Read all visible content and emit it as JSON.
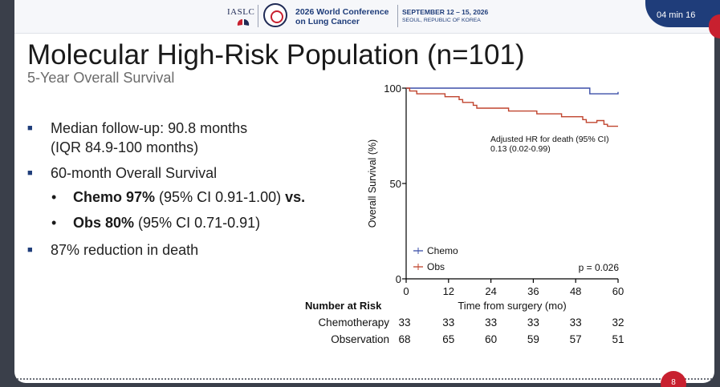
{
  "header": {
    "org": "IASLC",
    "conference_line1": "2026 World Conference",
    "conference_line2": "on Lung Cancer",
    "dates": "SEPTEMBER 12 – 15, 2026",
    "location": "SEOUL, REPUBLIC OF KOREA"
  },
  "timer": {
    "label": "04 min 16"
  },
  "slide": {
    "title": "Molecular High-Risk Population (n=101)",
    "subtitle": "5-Year Overall Survival",
    "page_number": "8",
    "bullets": [
      {
        "line1": "Median follow-up: 90.8 months",
        "line2": "(IQR 84.9-100 months)"
      },
      {
        "line1": "60-month Overall Survival"
      },
      {
        "line1": "87% reduction in death"
      }
    ],
    "sub_bullets": [
      {
        "bold": "Chemo 97%",
        "rest": " (95% CI 0.91-1.00) ",
        "tail": "vs."
      },
      {
        "bold": "Obs 80%",
        "rest": " (95% CI 0.71-0.91)",
        "tail": ""
      }
    ]
  },
  "chart_data": {
    "type": "line",
    "ylabel": "Overall Survival (%)",
    "xlabel": "Time from surgery (mo)",
    "xlim": [
      0,
      60
    ],
    "ylim": [
      0,
      100
    ],
    "x_ticks": [
      "0",
      "12",
      "24",
      "36",
      "48",
      "60"
    ],
    "y_ticks": [
      "0",
      "50",
      "100"
    ],
    "annotation_line1": "Adjusted HR for death (95% CI)",
    "annotation_line2": "0.13 (0.02-0.99)",
    "p_value": "p = 0.026",
    "legend_placement": "bottom-left",
    "series": [
      {
        "name": "Chemo",
        "color": "#3b4fa8",
        "steps": [
          [
            0,
            100
          ],
          [
            52,
            100
          ],
          [
            52,
            97
          ],
          [
            60,
            97
          ],
          [
            60,
            98
          ]
        ]
      },
      {
        "name": "Obs",
        "color": "#c0442e",
        "steps": [
          [
            0,
            100
          ],
          [
            1,
            100
          ],
          [
            1,
            98.5
          ],
          [
            3,
            98.5
          ],
          [
            3,
            97
          ],
          [
            11,
            97
          ],
          [
            11,
            95.5
          ],
          [
            15,
            95.5
          ],
          [
            15,
            94
          ],
          [
            16,
            94
          ],
          [
            16,
            92.5
          ],
          [
            19,
            92.5
          ],
          [
            19,
            91
          ],
          [
            20,
            91
          ],
          [
            20,
            89.5
          ],
          [
            29,
            89.5
          ],
          [
            29,
            88
          ],
          [
            37,
            88
          ],
          [
            37,
            86.5
          ],
          [
            44,
            86.5
          ],
          [
            44,
            85
          ],
          [
            50,
            85
          ],
          [
            50,
            83.5
          ],
          [
            51,
            83.5
          ],
          [
            51,
            82
          ],
          [
            54,
            82
          ],
          [
            54,
            83
          ],
          [
            56,
            83
          ],
          [
            56,
            81
          ],
          [
            57,
            81
          ],
          [
            57,
            80
          ],
          [
            60,
            80
          ]
        ]
      }
    ],
    "risk_table": {
      "header": "Number at Risk",
      "rows": [
        {
          "label": "Chemotherapy",
          "values": [
            "33",
            "33",
            "33",
            "33",
            "33",
            "32"
          ]
        },
        {
          "label": "Observation",
          "values": [
            "68",
            "65",
            "60",
            "59",
            "57",
            "51"
          ]
        }
      ]
    }
  }
}
